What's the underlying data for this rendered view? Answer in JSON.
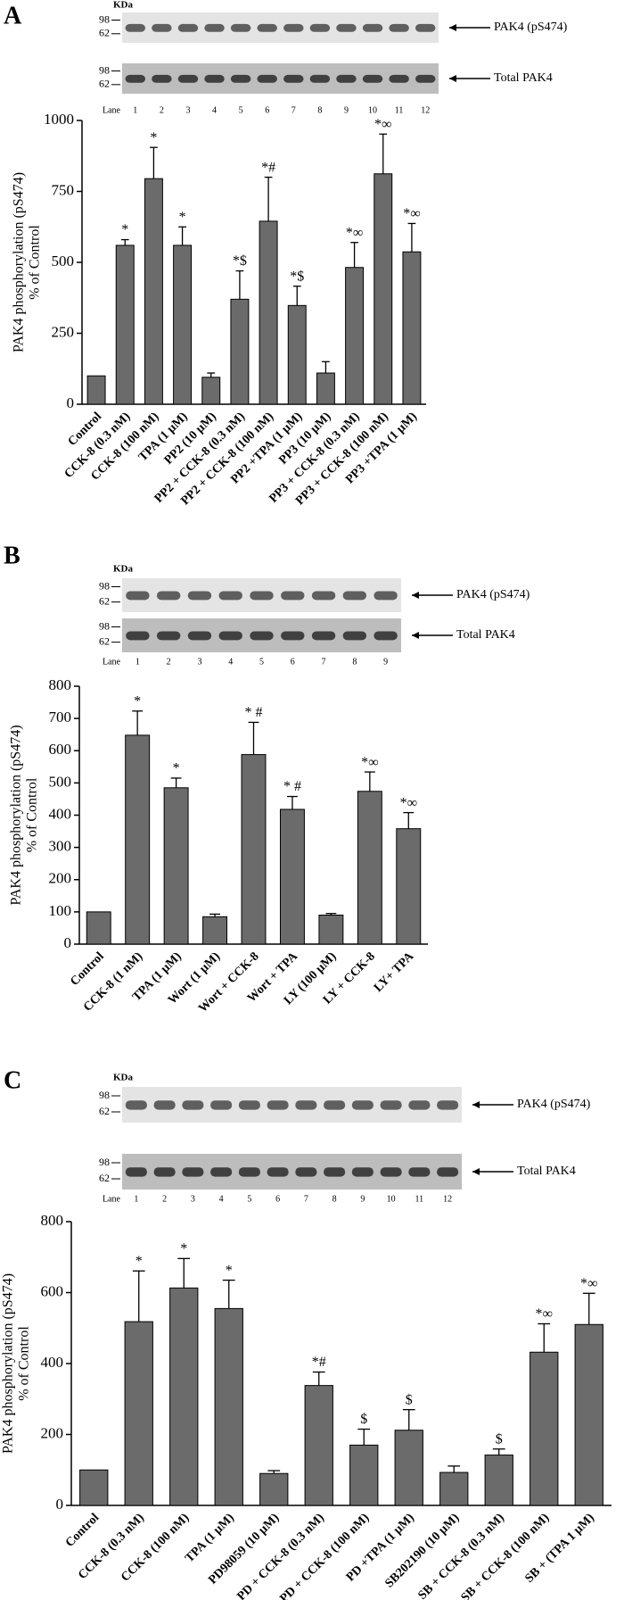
{
  "chart_data": [
    {
      "type": "bar",
      "panel": "A",
      "blot": {
        "kda": "KDa",
        "markers": [
          98,
          62
        ],
        "labels": [
          "PAK4 (pS474)",
          "Total PAK4"
        ],
        "lane_title": "Lane",
        "lanes": [
          1,
          2,
          3,
          4,
          5,
          6,
          7,
          8,
          9,
          10,
          11,
          12
        ]
      },
      "y_label": [
        "PAK4 phosphorylation (pS474)",
        "% of Control"
      ],
      "categories": [
        "Control",
        "CCK-8 (0.3 nM)",
        "CCK-8 (100 nM)",
        "TPA (1 µM)",
        "PP2 (10 µM)",
        "PP2 + CCK-8 (0.3 nM)",
        "PP2 + CCK-8 (100 nM)",
        "PP2 +TPA (1 µM)",
        "PP3 (10 µM)",
        "PP3 + CCK-8 (0.3 nM)",
        "PP3 + CCK-8 (100 nM)",
        "PP3 +TPA (1 µM)"
      ],
      "values": [
        100,
        560,
        795,
        560,
        95,
        370,
        645,
        348,
        110,
        482,
        812,
        537
      ],
      "errors": [
        0,
        20,
        110,
        65,
        15,
        100,
        155,
        68,
        40,
        88,
        140,
        100
      ],
      "annotations": [
        null,
        "*",
        "*",
        "*",
        null,
        "*$",
        "*#",
        "*$",
        null,
        "*∞",
        "*∞",
        "*∞"
      ],
      "color": "#6b6b6b",
      "ylim": [
        0,
        1000
      ],
      "yticks": [
        0,
        250,
        500,
        750,
        1000
      ]
    },
    {
      "type": "bar",
      "panel": "B",
      "blot": {
        "kda": "KDa",
        "markers": [
          98,
          62
        ],
        "labels": [
          "PAK4 (pS474)",
          "Total PAK4"
        ],
        "lane_title": "Lane",
        "lanes": [
          1,
          2,
          3,
          4,
          5,
          6,
          7,
          8,
          9
        ]
      },
      "y_label": [
        "PAK4 phosphorylation (pS474)",
        "% of Control"
      ],
      "categories": [
        "Control",
        "CCK-8 (1 nM)",
        "TPA (1 µM)",
        "Wort (1 µM)",
        "Wort + CCK-8",
        "Wort + TPA",
        "LY (100 µM)",
        "LY + CCK-8",
        "LY+ TPA"
      ],
      "values": [
        100,
        648,
        485,
        85,
        588,
        418,
        90,
        474,
        358
      ],
      "errors": [
        0,
        75,
        30,
        8,
        100,
        40,
        5,
        60,
        50
      ],
      "annotations": [
        null,
        "*",
        "*",
        null,
        "* #",
        "* #",
        null,
        "*∞",
        "*∞"
      ],
      "color": "#6b6b6b",
      "ylim": [
        0,
        800
      ],
      "yticks": [
        0,
        100,
        200,
        300,
        400,
        500,
        600,
        700,
        800
      ]
    },
    {
      "type": "bar",
      "panel": "C",
      "blot": {
        "kda": "KDa",
        "markers": [
          98,
          62
        ],
        "labels": [
          "PAK4 (pS474)",
          "Total PAK4"
        ],
        "lane_title": "Lane",
        "lanes": [
          1,
          2,
          3,
          4,
          5,
          6,
          7,
          8,
          9,
          10,
          11,
          12
        ]
      },
      "y_label": [
        "PAK4 phosphorylation (pS474)",
        "% of Control"
      ],
      "categories": [
        "Control",
        "CCK-8 (0.3 nM)",
        "CCK-8 (100 nM)",
        "TPA (1 µM)",
        "PD98059 (10 µM)",
        "PD + CCK-8 (0.3 nM)",
        "PD + CCK-8 (100 nM)",
        "PD +TPA (1 µM)",
        "SB202190 (10 µM)",
        "SB + CCK-8 (0.3 nM)",
        "SB + CCK-8 (100 nM)",
        "SB + (TPA 1 µM)"
      ],
      "values": [
        100,
        518,
        613,
        555,
        90,
        338,
        170,
        212,
        93,
        142,
        432,
        510
      ],
      "errors": [
        0,
        143,
        83,
        80,
        8,
        38,
        45,
        58,
        18,
        17,
        80,
        88
      ],
      "annotations": [
        null,
        "*",
        "*",
        "*",
        null,
        "*#",
        "$",
        "$",
        null,
        "$",
        "*∞",
        "*∞"
      ],
      "color": "#6b6b6b",
      "ylim": [
        0,
        800
      ],
      "yticks": [
        0,
        200,
        400,
        600,
        800
      ]
    }
  ]
}
